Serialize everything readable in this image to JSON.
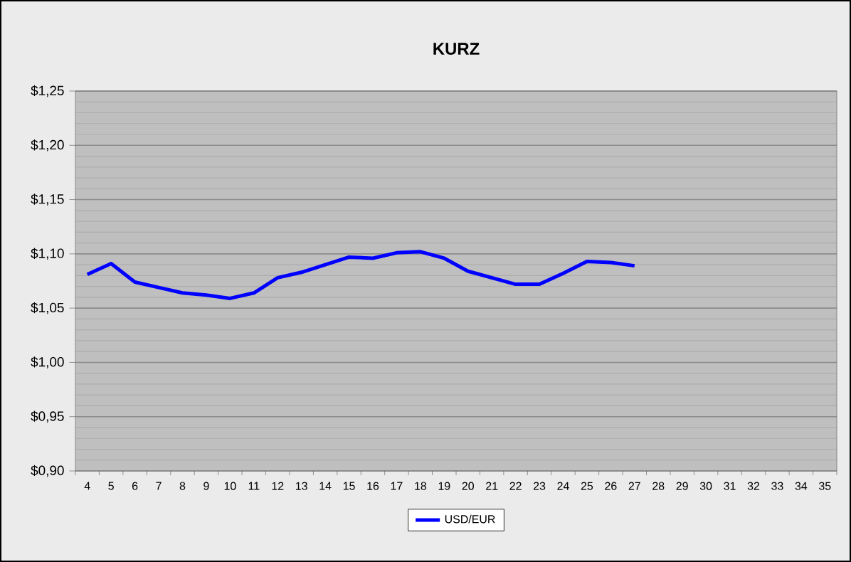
{
  "chart_data": {
    "type": "line",
    "title": "KURZ",
    "categories": [
      "4",
      "5",
      "6",
      "7",
      "8",
      "9",
      "10",
      "11",
      "12",
      "13",
      "14",
      "15",
      "16",
      "17",
      "18",
      "19",
      "20",
      "21",
      "22",
      "23",
      "24",
      "25",
      "26",
      "27",
      "28",
      "29",
      "30",
      "31",
      "32",
      "33",
      "34",
      "35"
    ],
    "series": [
      {
        "name": "USD/EUR",
        "color": "#0000ff",
        "values": [
          1.081,
          1.091,
          1.074,
          1.069,
          1.064,
          1.062,
          1.059,
          1.064,
          1.078,
          1.083,
          1.09,
          1.097,
          1.096,
          1.101,
          1.102,
          1.096,
          1.084,
          1.078,
          1.072,
          1.072,
          1.082,
          1.093,
          1.092,
          1.089,
          null,
          null,
          null,
          null,
          null,
          null,
          null,
          null
        ]
      }
    ],
    "ylim": [
      0.9,
      1.25
    ],
    "yticks": [
      {
        "value": 0.9,
        "label": "$0,90"
      },
      {
        "value": 0.95,
        "label": "$0,95"
      },
      {
        "value": 1.0,
        "label": "$1,00"
      },
      {
        "value": 1.05,
        "label": "$1,05"
      },
      {
        "value": 1.1,
        "label": "$1,10"
      },
      {
        "value": 1.15,
        "label": "$1,15"
      },
      {
        "value": 1.2,
        "label": "$1,20"
      },
      {
        "value": 1.25,
        "label": "$1,25"
      }
    ],
    "grid": "y",
    "legend": "bottom",
    "marker": "none",
    "line_style": "solid"
  }
}
